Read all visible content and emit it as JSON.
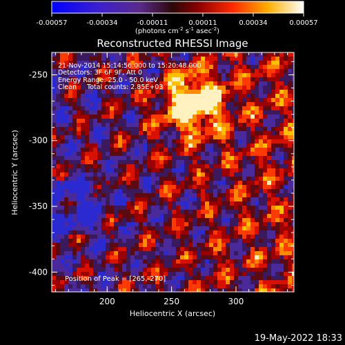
{
  "colorbar": {
    "ticks": [
      "-0.00057",
      "-0.00034",
      "-0.00011",
      "0.00011",
      "0.00034",
      "0.00057"
    ],
    "unit_label": "(photons cm",
    "unit_exp1": "-2",
    "unit_s": " s",
    "unit_exp2": "-1",
    "unit_asec": " asec",
    "unit_exp3": "-2",
    "unit_close": ")"
  },
  "chart_data": {
    "type": "heatmap",
    "title": "Reconstructed RHESSI Image",
    "xlabel": "Heliocentric X (arcsec)",
    "ylabel": "Heliocentric Y (arcsec)",
    "xlim": [
      157,
      345
    ],
    "ylim": [
      -415,
      -233
    ],
    "x_ticks": [
      200,
      250,
      300
    ],
    "y_ticks": [
      -250,
      -300,
      -350,
      -400
    ],
    "color_range": [
      -0.00057,
      0.00057
    ],
    "peak": [
      265,
      -270
    ],
    "annotations": {
      "time": "21-Nov-2014 15:14:56.000 to 15:20:48.000",
      "detectors": "Detectors: 3F 6F 9F, Att 0",
      "energy": "Energy Range: 25.0 - 50.0 keV",
      "method": "Clean     Total counts: 2.85E+03",
      "peak_text": "Position of Peak = [265,-270]"
    }
  },
  "footer": {
    "timestamp": "19-May-2022 18:33"
  }
}
